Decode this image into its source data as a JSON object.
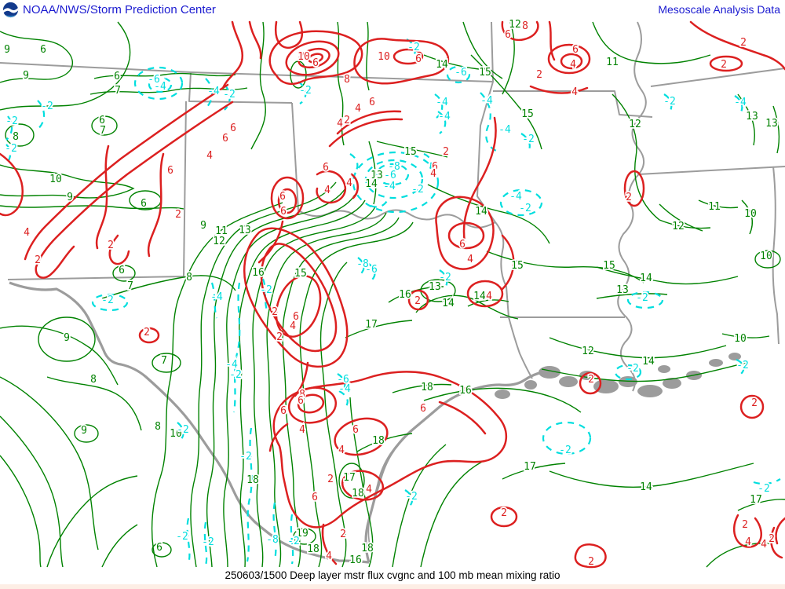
{
  "header": {
    "left_title": "NOAA/NWS/Storm Prediction Center",
    "right_title": "Mesoscale Analysis Data"
  },
  "footer": {
    "caption": "250603/1500 Deep layer mstr flux cvgnc and 100 mb mean mixing ratio"
  },
  "colors": {
    "title_blue": "#1b1bd0",
    "mixing_ratio_green": "#008200",
    "convergence_red": "#dc2020",
    "divergence_cyan": "#00dede",
    "state_border_gray": "#9c9c9c",
    "background_white": "#ffffff",
    "page_margin_pink": "#fdeee5",
    "caption_black": "#000000"
  },
  "map": {
    "labels": {
      "green": [
        [
          "9",
          9,
          63
        ],
        [
          "6",
          55,
          63
        ],
        [
          "9",
          33,
          96
        ],
        [
          "6",
          149,
          97
        ],
        [
          "7",
          150,
          115
        ],
        [
          "6",
          130,
          153
        ],
        [
          "7",
          131,
          166
        ],
        [
          "8",
          20,
          174
        ],
        [
          "10",
          71,
          228
        ],
        [
          "9",
          89,
          251
        ],
        [
          "6",
          183,
          259
        ],
        [
          "6",
          155,
          344
        ],
        [
          "8",
          241,
          353
        ],
        [
          "7",
          166,
          364
        ],
        [
          "9",
          85,
          430
        ],
        [
          "8",
          119,
          483
        ],
        [
          "7",
          209,
          459
        ],
        [
          "9",
          107,
          548
        ],
        [
          "8",
          201,
          543
        ],
        [
          "10",
          224,
          552
        ],
        [
          "6",
          203,
          697
        ],
        [
          "9",
          259,
          287
        ],
        [
          "11",
          282,
          294
        ],
        [
          "12",
          279,
          307
        ],
        [
          "13",
          312,
          293
        ],
        [
          "16",
          329,
          347
        ],
        [
          "15",
          383,
          348
        ],
        [
          "18",
          322,
          611
        ],
        [
          "19",
          385,
          679
        ],
        [
          "18",
          399,
          699
        ],
        [
          "16",
          453,
          713
        ],
        [
          "18",
          468,
          698
        ],
        [
          "18",
          482,
          561
        ],
        [
          "17",
          445,
          608
        ],
        [
          "18",
          456,
          628
        ],
        [
          "18",
          544,
          493
        ],
        [
          "16",
          593,
          497
        ],
        [
          "14",
          613,
          269
        ],
        [
          "13",
          554,
          365
        ],
        [
          "14",
          571,
          386
        ],
        [
          "16",
          516,
          375
        ],
        [
          "14",
          611,
          377
        ],
        [
          "15",
          659,
          338
        ],
        [
          "17",
          473,
          413
        ],
        [
          "13",
          480,
          223
        ],
        [
          "14",
          473,
          234
        ],
        [
          "15",
          523,
          193
        ],
        [
          "14",
          563,
          82
        ],
        [
          "12",
          656,
          31
        ],
        [
          "11",
          780,
          79
        ],
        [
          "15",
          618,
          92
        ],
        [
          "15",
          672,
          145
        ],
        [
          "12",
          809,
          158
        ],
        [
          "13",
          958,
          148
        ],
        [
          "13",
          983,
          157
        ],
        [
          "12",
          864,
          288
        ],
        [
          "11",
          910,
          263
        ],
        [
          "10",
          956,
          272
        ],
        [
          "10",
          976,
          326
        ],
        [
          "14",
          823,
          354
        ],
        [
          "15",
          776,
          338
        ],
        [
          "13",
          793,
          369
        ],
        [
          "12",
          749,
          447
        ],
        [
          "14",
          826,
          460
        ],
        [
          "10",
          943,
          431
        ],
        [
          "17",
          675,
          594
        ],
        [
          "14",
          823,
          620
        ],
        [
          "17",
          963,
          636
        ]
      ],
      "red": [
        [
          "10",
          387,
          72
        ],
        [
          "6",
          402,
          80
        ],
        [
          "10",
          489,
          72
        ],
        [
          "6",
          533,
          75
        ],
        [
          "8",
          442,
          101
        ],
        [
          "6",
          474,
          130
        ],
        [
          "4",
          456,
          138
        ],
        [
          "2",
          442,
          153
        ],
        [
          "4",
          433,
          157
        ],
        [
          "8",
          669,
          33
        ],
        [
          "6",
          647,
          44
        ],
        [
          "6",
          733,
          63
        ],
        [
          "4",
          730,
          82
        ],
        [
          "2",
          687,
          95
        ],
        [
          "4",
          732,
          117
        ],
        [
          "2",
          947,
          54
        ],
        [
          "2",
          922,
          82
        ],
        [
          "2",
          801,
          251
        ],
        [
          "6",
          297,
          163
        ],
        [
          "6",
          287,
          176
        ],
        [
          "4",
          267,
          198
        ],
        [
          "6",
          217,
          217
        ],
        [
          "2",
          227,
          273
        ],
        [
          "4",
          34,
          296
        ],
        [
          "2",
          48,
          331
        ],
        [
          "2",
          141,
          312
        ],
        [
          "6",
          589,
          311
        ],
        [
          "4",
          599,
          330
        ],
        [
          "2",
          532,
          383
        ],
        [
          "4",
          623,
          377
        ],
        [
          "6",
          360,
          250
        ],
        [
          "6",
          361,
          269
        ],
        [
          "4",
          445,
          233
        ],
        [
          "4",
          417,
          242
        ],
        [
          "6",
          415,
          213
        ],
        [
          "2",
          568,
          193
        ],
        [
          "6",
          554,
          212
        ],
        [
          "4",
          552,
          221
        ],
        [
          "2",
          350,
          397
        ],
        [
          "4",
          373,
          415
        ],
        [
          "2",
          356,
          429
        ],
        [
          "6",
          377,
          403
        ],
        [
          "2",
          187,
          423
        ],
        [
          "8",
          385,
          502
        ],
        [
          "6",
          383,
          510
        ],
        [
          "6",
          539,
          520
        ],
        [
          "6",
          453,
          547
        ],
        [
          "4",
          435,
          573
        ],
        [
          "2",
          421,
          610
        ],
        [
          "4",
          470,
          623
        ],
        [
          "6",
          401,
          633
        ],
        [
          "2",
          642,
          653
        ],
        [
          "2",
          437,
          680
        ],
        [
          "4",
          419,
          708
        ],
        [
          "6",
          361,
          523
        ],
        [
          "4",
          385,
          547
        ],
        [
          "2",
          753,
          483
        ],
        [
          "2",
          961,
          513
        ],
        [
          "2",
          949,
          668
        ],
        [
          "4",
          953,
          690
        ],
        [
          "4",
          973,
          693
        ],
        [
          "2",
          983,
          686
        ],
        [
          "2",
          753,
          715
        ]
      ],
      "cyan": [
        [
          "-6",
          196,
          101
        ],
        [
          "-4",
          204,
          110
        ],
        [
          "-2",
          60,
          135
        ],
        [
          "-2",
          15,
          154
        ],
        [
          "-2",
          14,
          189
        ],
        [
          "-4",
          272,
          116
        ],
        [
          "-2",
          292,
          120
        ],
        [
          "-2",
          389,
          115
        ],
        [
          "-2",
          527,
          60
        ],
        [
          "-6",
          587,
          92
        ],
        [
          "-4",
          563,
          130
        ],
        [
          "-4",
          566,
          148
        ],
        [
          "-2",
          567,
          353
        ],
        [
          "-8",
          462,
          336
        ],
        [
          "-6",
          473,
          343
        ],
        [
          "-8",
          502,
          212
        ],
        [
          "-6",
          497,
          223
        ],
        [
          "-4",
          496,
          237
        ],
        [
          "-2",
          532,
          241
        ],
        [
          "-4",
          657,
          250
        ],
        [
          "-2",
          669,
          265
        ],
        [
          "-4",
          620,
          128
        ],
        [
          "-4",
          643,
          165
        ],
        [
          "-2",
          673,
          177
        ],
        [
          "-2",
          853,
          129
        ],
        [
          "-4",
          943,
          130
        ],
        [
          "-2",
          137,
          382
        ],
        [
          "-4",
          276,
          378
        ],
        [
          "-2",
          339,
          369
        ],
        [
          "-4",
          295,
          464
        ],
        [
          "-2",
          300,
          477
        ],
        [
          "-2",
          233,
          547
        ],
        [
          "-2",
          313,
          581
        ],
        [
          "-2",
          232,
          683
        ],
        [
          "-2",
          265,
          690
        ],
        [
          "-8",
          347,
          687
        ],
        [
          "-2",
          374,
          689
        ],
        [
          "-6",
          437,
          483
        ],
        [
          "-4",
          439,
          495
        ],
        [
          "-2",
          524,
          632
        ],
        [
          "-2",
          806,
          469
        ],
        [
          "-2",
          946,
          465
        ],
        [
          "-2",
          720,
          573
        ],
        [
          "-2",
          973,
          622
        ],
        [
          "-2",
          818,
          379
        ]
      ]
    }
  }
}
